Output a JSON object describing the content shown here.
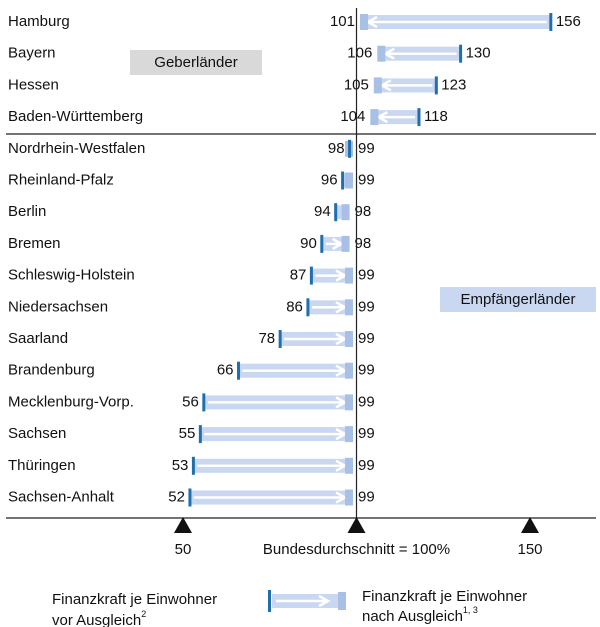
{
  "chart_data": {
    "type": "arrow",
    "categories": [
      "Hamburg",
      "Bayern",
      "Hessen",
      "Baden-Württemberg",
      "Nordrhein-Westfalen",
      "Rheinland-Pfalz",
      "Berlin",
      "Bremen",
      "Schleswig-Holstein",
      "Niedersachsen",
      "Saarland",
      "Brandenburg",
      "Mecklenburg-Vorp.",
      "Sachsen",
      "Thüringen",
      "Sachsen-Anhalt"
    ],
    "series": [
      {
        "name": "before",
        "color": "#1f6fae",
        "values": [
          156,
          130,
          123,
          118,
          98,
          96,
          94,
          90,
          87,
          86,
          78,
          66,
          56,
          55,
          53,
          52
        ]
      },
      {
        "name": "after",
        "color": "#a9c0e6",
        "values": [
          101,
          106,
          105,
          104,
          99,
          99,
          98,
          98,
          99,
          99,
          99,
          99,
          99,
          99,
          99,
          99
        ]
      }
    ],
    "arrow_color": "#c9d7f0",
    "group_labels": [
      "Geberländer",
      "Empfängerländer"
    ],
    "xlim": [
      50,
      150
    ],
    "xticks": [
      50,
      {
        "value": 100,
        "label": "Bundesdurchschnitt = 100%"
      },
      150
    ],
    "legend": {
      "before": {
        "line1": "Finanzkraft je Einwohner",
        "line2": "vor Ausgleich",
        "note": "2"
      },
      "after": {
        "line1": "Finanzkraft je Einwohner",
        "line2": "nach Ausgleich",
        "note": "1, 3"
      }
    }
  }
}
